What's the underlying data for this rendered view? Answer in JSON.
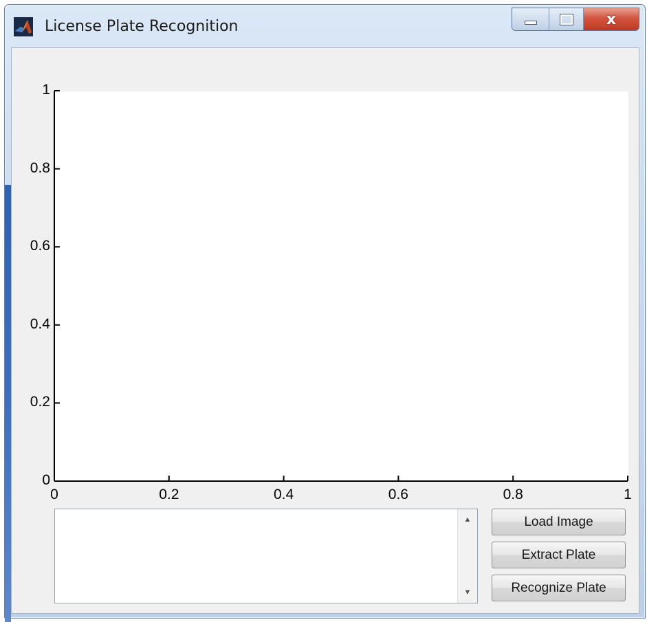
{
  "window": {
    "title": "License Plate Recognition",
    "icon": "matlab-icon",
    "controls": {
      "minimize_icon": "minimize-icon",
      "maximize_icon": "maximize-icon",
      "close_icon": "close-icon",
      "close_glyph": "x"
    },
    "close_color": "#c8432c"
  },
  "axes": {
    "x_ticks": [
      "0",
      "0.2",
      "0.4",
      "0.6",
      "0.8",
      "1"
    ],
    "y_ticks": [
      "0",
      "0.2",
      "0.4",
      "0.6",
      "0.8",
      "1"
    ],
    "xlim": [
      0,
      1
    ],
    "ylim": [
      0,
      1
    ],
    "grid": false
  },
  "listbox": {
    "items": [],
    "scroll_up_icon": "scroll-up-arrow-icon",
    "scroll_down_icon": "scroll-down-arrow-icon"
  },
  "buttons": {
    "load_image": "Load Image",
    "extract_plate": "Extract Plate",
    "recognize_plate": "Recognize Plate"
  }
}
